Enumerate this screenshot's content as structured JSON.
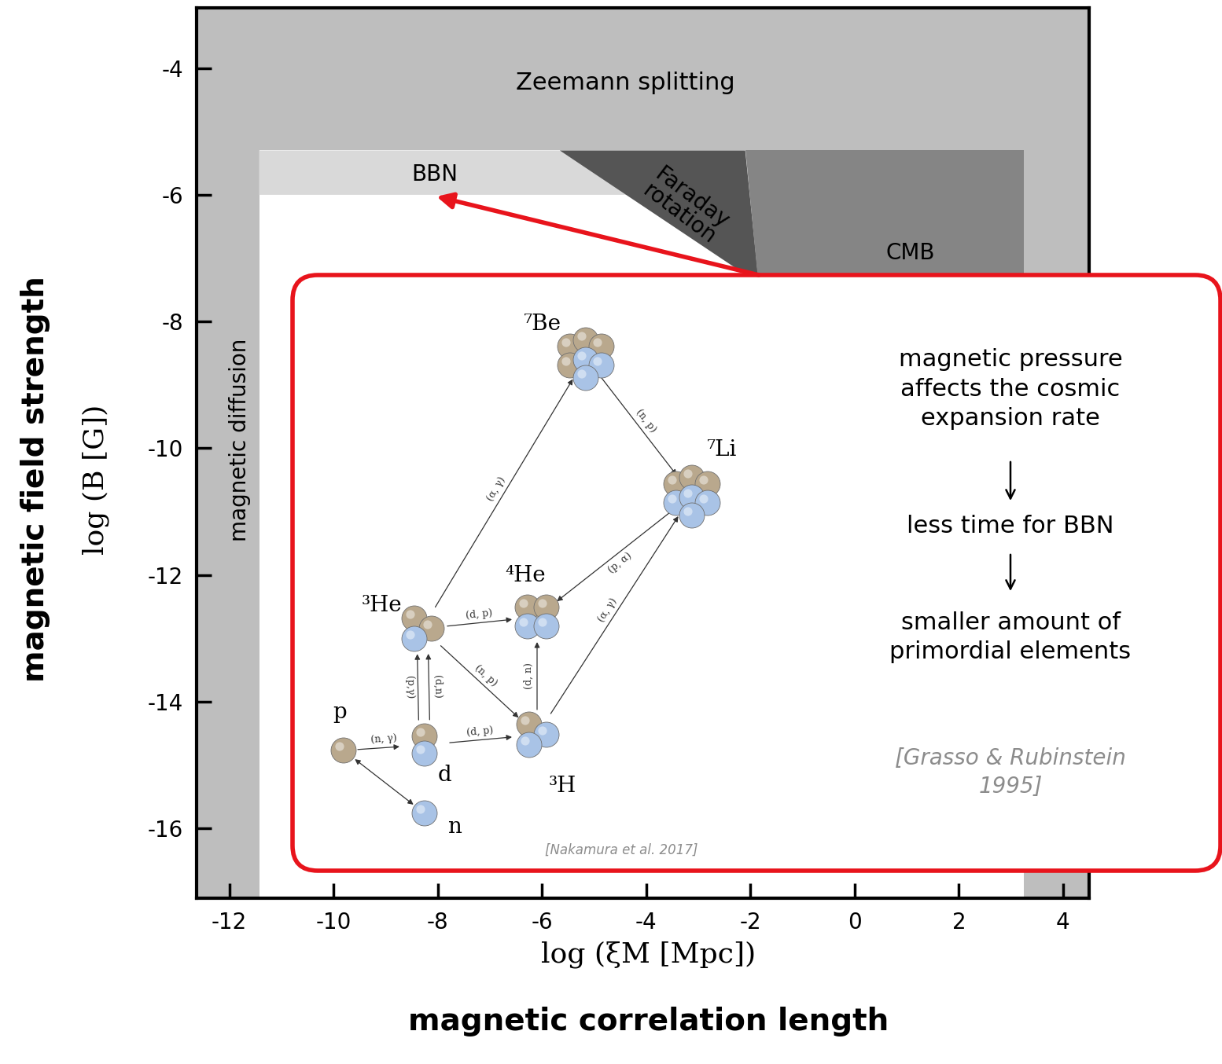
{
  "chart_data": {
    "type": "region",
    "x_label": "log (ξM [Mpc])",
    "x_title": "magnetic correlation length",
    "y_label": "log (B [G])",
    "y_title": "magnetic field strength",
    "xlim": [
      -12.63,
      4.5
    ],
    "ylim": [
      -17.1,
      -3.05
    ],
    "xticks": [
      -12,
      -10,
      -8,
      -6,
      -4,
      -2,
      0,
      2,
      4
    ],
    "yticks": [
      -16,
      -14,
      -12,
      -10,
      -8,
      -6,
      -4
    ],
    "regions": [
      {
        "name": "Zeemann splitting",
        "color": "#bebebe",
        "x": [
          -12.63,
          4.5,
          4.5,
          3.25,
          3.25,
          -12.63
        ],
        "y": [
          -3.05,
          -3.05,
          -17.1,
          -17.1,
          -5.3,
          -5.3
        ]
      },
      {
        "name": "magnetic diffusion",
        "color": "#bebebe",
        "x": [
          -12.63,
          -11.43,
          -11.43,
          -12.63
        ],
        "y": [
          -5.3,
          -5.3,
          -17.1,
          -17.1
        ]
      },
      {
        "name": "BBN",
        "color": "#d9d9d9",
        "x": [
          -11.43,
          -5.66,
          -4.3,
          -11.43
        ],
        "y": [
          -5.3,
          -5.3,
          -6.0,
          -6.0
        ]
      },
      {
        "name": "Faraday\nrotation",
        "color": "#555555",
        "x": [
          -5.66,
          -2.1,
          -1.84
        ],
        "y": [
          -5.3,
          -5.3,
          -7.4
        ]
      },
      {
        "name": "CMB",
        "color": "#858585",
        "x": [
          -2.1,
          3.25,
          3.25,
          -1.82
        ],
        "y": [
          -5.3,
          -5.3,
          -7.6,
          -7.6
        ]
      }
    ]
  },
  "inset": {
    "points_to": "BBN",
    "explanation": [
      "magnetic pressure\naffects the cosmic\nexpansion rate",
      "less time for BBN",
      "smaller amount of\nprimordial elements"
    ],
    "explanation_source": "[Grasso & Rubinstein\n1995]",
    "diagram": {
      "source": "[Nakamura et al. 2017]",
      "nodes": [
        "p",
        "n",
        "d",
        "³He",
        "⁴He",
        "³H",
        "⁷Be",
        "⁷Li"
      ],
      "edges": [
        {
          "from": "p",
          "to": "d",
          "label": "(n, γ)"
        },
        {
          "from": "p",
          "to": "n"
        },
        {
          "from": "d",
          "to": "³H",
          "label": "(d, p)"
        },
        {
          "from": "d",
          "to": "³He",
          "label": "(d,n)"
        },
        {
          "from": "d",
          "to": "³He",
          "label": "(p,γ)"
        },
        {
          "from": "³He",
          "to": "⁴He",
          "label": "(d, p)"
        },
        {
          "from": "³He",
          "to": "³H",
          "label": "(n, p)"
        },
        {
          "from": "³H",
          "to": "⁴He",
          "label": "(d, n)"
        },
        {
          "from": "³He",
          "to": "⁷Be",
          "label": "(α, γ)"
        },
        {
          "from": "⁷Be",
          "to": "⁷Li",
          "label": "(n, p)"
        },
        {
          "from": "⁷Li",
          "to": "⁴He",
          "label": "(p, α)"
        },
        {
          "from": "³H",
          "to": "⁷Li",
          "label": "(α, γ)"
        }
      ]
    }
  }
}
